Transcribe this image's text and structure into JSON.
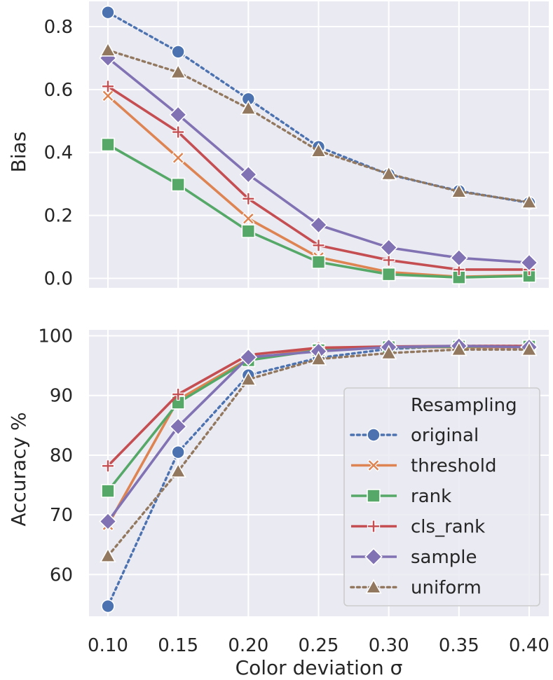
{
  "chart_data": [
    {
      "type": "line",
      "panel": "top",
      "ylabel": "Bias",
      "xlabel": "",
      "ylim": [
        -0.03,
        0.88
      ],
      "yticks": [
        0.0,
        0.2,
        0.4,
        0.6,
        0.8
      ],
      "ytick_labels": [
        "0.0",
        "0.2",
        "0.4",
        "0.6",
        "0.8"
      ],
      "x": [
        0.1,
        0.15,
        0.2,
        0.25,
        0.3,
        0.35,
        0.4
      ],
      "grid": true,
      "series": [
        {
          "name": "original",
          "values": [
            0.845,
            0.72,
            0.57,
            0.418,
            0.33,
            0.278,
            0.24
          ]
        },
        {
          "name": "threshold",
          "values": [
            0.58,
            0.383,
            0.19,
            0.067,
            0.02,
            0.005,
            0.01
          ]
        },
        {
          "name": "rank",
          "values": [
            0.425,
            0.298,
            0.15,
            0.052,
            0.013,
            0.003,
            0.008
          ]
        },
        {
          "name": "cls_rank",
          "values": [
            0.61,
            0.465,
            0.253,
            0.105,
            0.058,
            0.028,
            0.028
          ]
        },
        {
          "name": "sample",
          "values": [
            0.7,
            0.52,
            0.33,
            0.17,
            0.098,
            0.065,
            0.05
          ]
        },
        {
          "name": "uniform",
          "values": [
            0.725,
            0.655,
            0.54,
            0.405,
            0.332,
            0.276,
            0.242
          ]
        }
      ]
    },
    {
      "type": "line",
      "panel": "bottom",
      "ylabel": "Accuracy %",
      "xlabel": "Color deviation σ",
      "ylim": [
        53,
        101
      ],
      "yticks": [
        60,
        70,
        80,
        90,
        100
      ],
      "ytick_labels": [
        "60",
        "70",
        "80",
        "90",
        "100"
      ],
      "x": [
        0.1,
        0.15,
        0.2,
        0.25,
        0.3,
        0.35,
        0.4
      ],
      "xtick_labels": [
        "0.10",
        "0.15",
        "0.20",
        "0.25",
        "0.30",
        "0.35",
        "0.40"
      ],
      "grid": true,
      "legend_position": "lower-right",
      "legend_title": "Resampling",
      "series": [
        {
          "name": "original",
          "values": [
            54.7,
            80.5,
            93.4,
            96.3,
            97.8,
            98.3,
            98.3
          ]
        },
        {
          "name": "threshold",
          "values": [
            68.3,
            89.3,
            96.1,
            97.9,
            98.1,
            98.1,
            98.1
          ]
        },
        {
          "name": "rank",
          "values": [
            74.0,
            88.8,
            95.9,
            97.6,
            98.1,
            98.2,
            98.2
          ]
        },
        {
          "name": "cls_rank",
          "values": [
            78.2,
            90.2,
            96.8,
            98.0,
            98.2,
            98.3,
            98.3
          ]
        },
        {
          "name": "sample",
          "values": [
            68.9,
            84.8,
            96.4,
            97.4,
            98.1,
            98.3,
            98.1
          ]
        },
        {
          "name": "uniform",
          "values": [
            63.1,
            77.3,
            92.7,
            96.1,
            97.1,
            97.7,
            97.7
          ]
        }
      ]
    }
  ],
  "legend": {
    "title": "Resampling",
    "entries": [
      "original",
      "threshold",
      "rank",
      "cls_rank",
      "sample",
      "uniform"
    ]
  },
  "series_style": {
    "original": {
      "color": "#4c72b0",
      "marker": "circle",
      "dash": "dotted"
    },
    "threshold": {
      "color": "#dd8452",
      "marker": "x",
      "dash": "solid"
    },
    "rank": {
      "color": "#55a868",
      "marker": "square",
      "dash": "solid"
    },
    "cls_rank": {
      "color": "#c44e52",
      "marker": "plus",
      "dash": "solid"
    },
    "sample": {
      "color": "#8172b3",
      "marker": "diamond",
      "dash": "solid"
    },
    "uniform": {
      "color": "#937860",
      "marker": "triangle",
      "dash": "dotted"
    }
  },
  "colors": {
    "panel_bg": "#eaeaf2",
    "grid": "#ffffff",
    "text": "#262626"
  }
}
